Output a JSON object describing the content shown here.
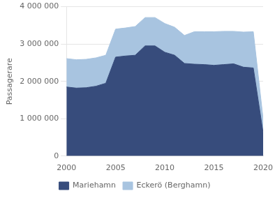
{
  "chart_data": {
    "type": "area",
    "stacked": true,
    "grid": true,
    "legend": "bottom",
    "y_label": "Passagerare",
    "x": [
      2000,
      2001,
      2002,
      2003,
      2004,
      2005,
      2006,
      2007,
      2008,
      2009,
      2010,
      2011,
      2012,
      2013,
      2014,
      2015,
      2016,
      2017,
      2018,
      2019,
      2020
    ],
    "series": [
      {
        "name": "Mariehamn",
        "color": "#374c7c",
        "values": [
          1850000,
          1820000,
          1830000,
          1870000,
          1950000,
          2650000,
          2680000,
          2700000,
          2950000,
          2950000,
          2780000,
          2700000,
          2480000,
          2460000,
          2450000,
          2430000,
          2450000,
          2470000,
          2380000,
          2360000,
          620000
        ]
      },
      {
        "name": "Eckerö (Berghamn)",
        "color": "#a8c4e0",
        "values": [
          760000,
          760000,
          760000,
          760000,
          750000,
          750000,
          750000,
          770000,
          760000,
          760000,
          770000,
          750000,
          750000,
          870000,
          880000,
          900000,
          890000,
          870000,
          940000,
          970000,
          370000
        ]
      }
    ],
    "xlim": [
      2000,
      2020
    ],
    "xticks": [
      2000,
      2005,
      2010,
      2015,
      2020
    ],
    "ylim": [
      0,
      4000000
    ],
    "yticks": [
      0,
      {
        "value": 1000000,
        "label": "1 000 000"
      },
      {
        "value": 2000000,
        "label": "2 000 000"
      },
      {
        "value": 3000000,
        "label": "3 000 000"
      },
      {
        "value": 4000000,
        "label": "4 000 000"
      }
    ]
  }
}
